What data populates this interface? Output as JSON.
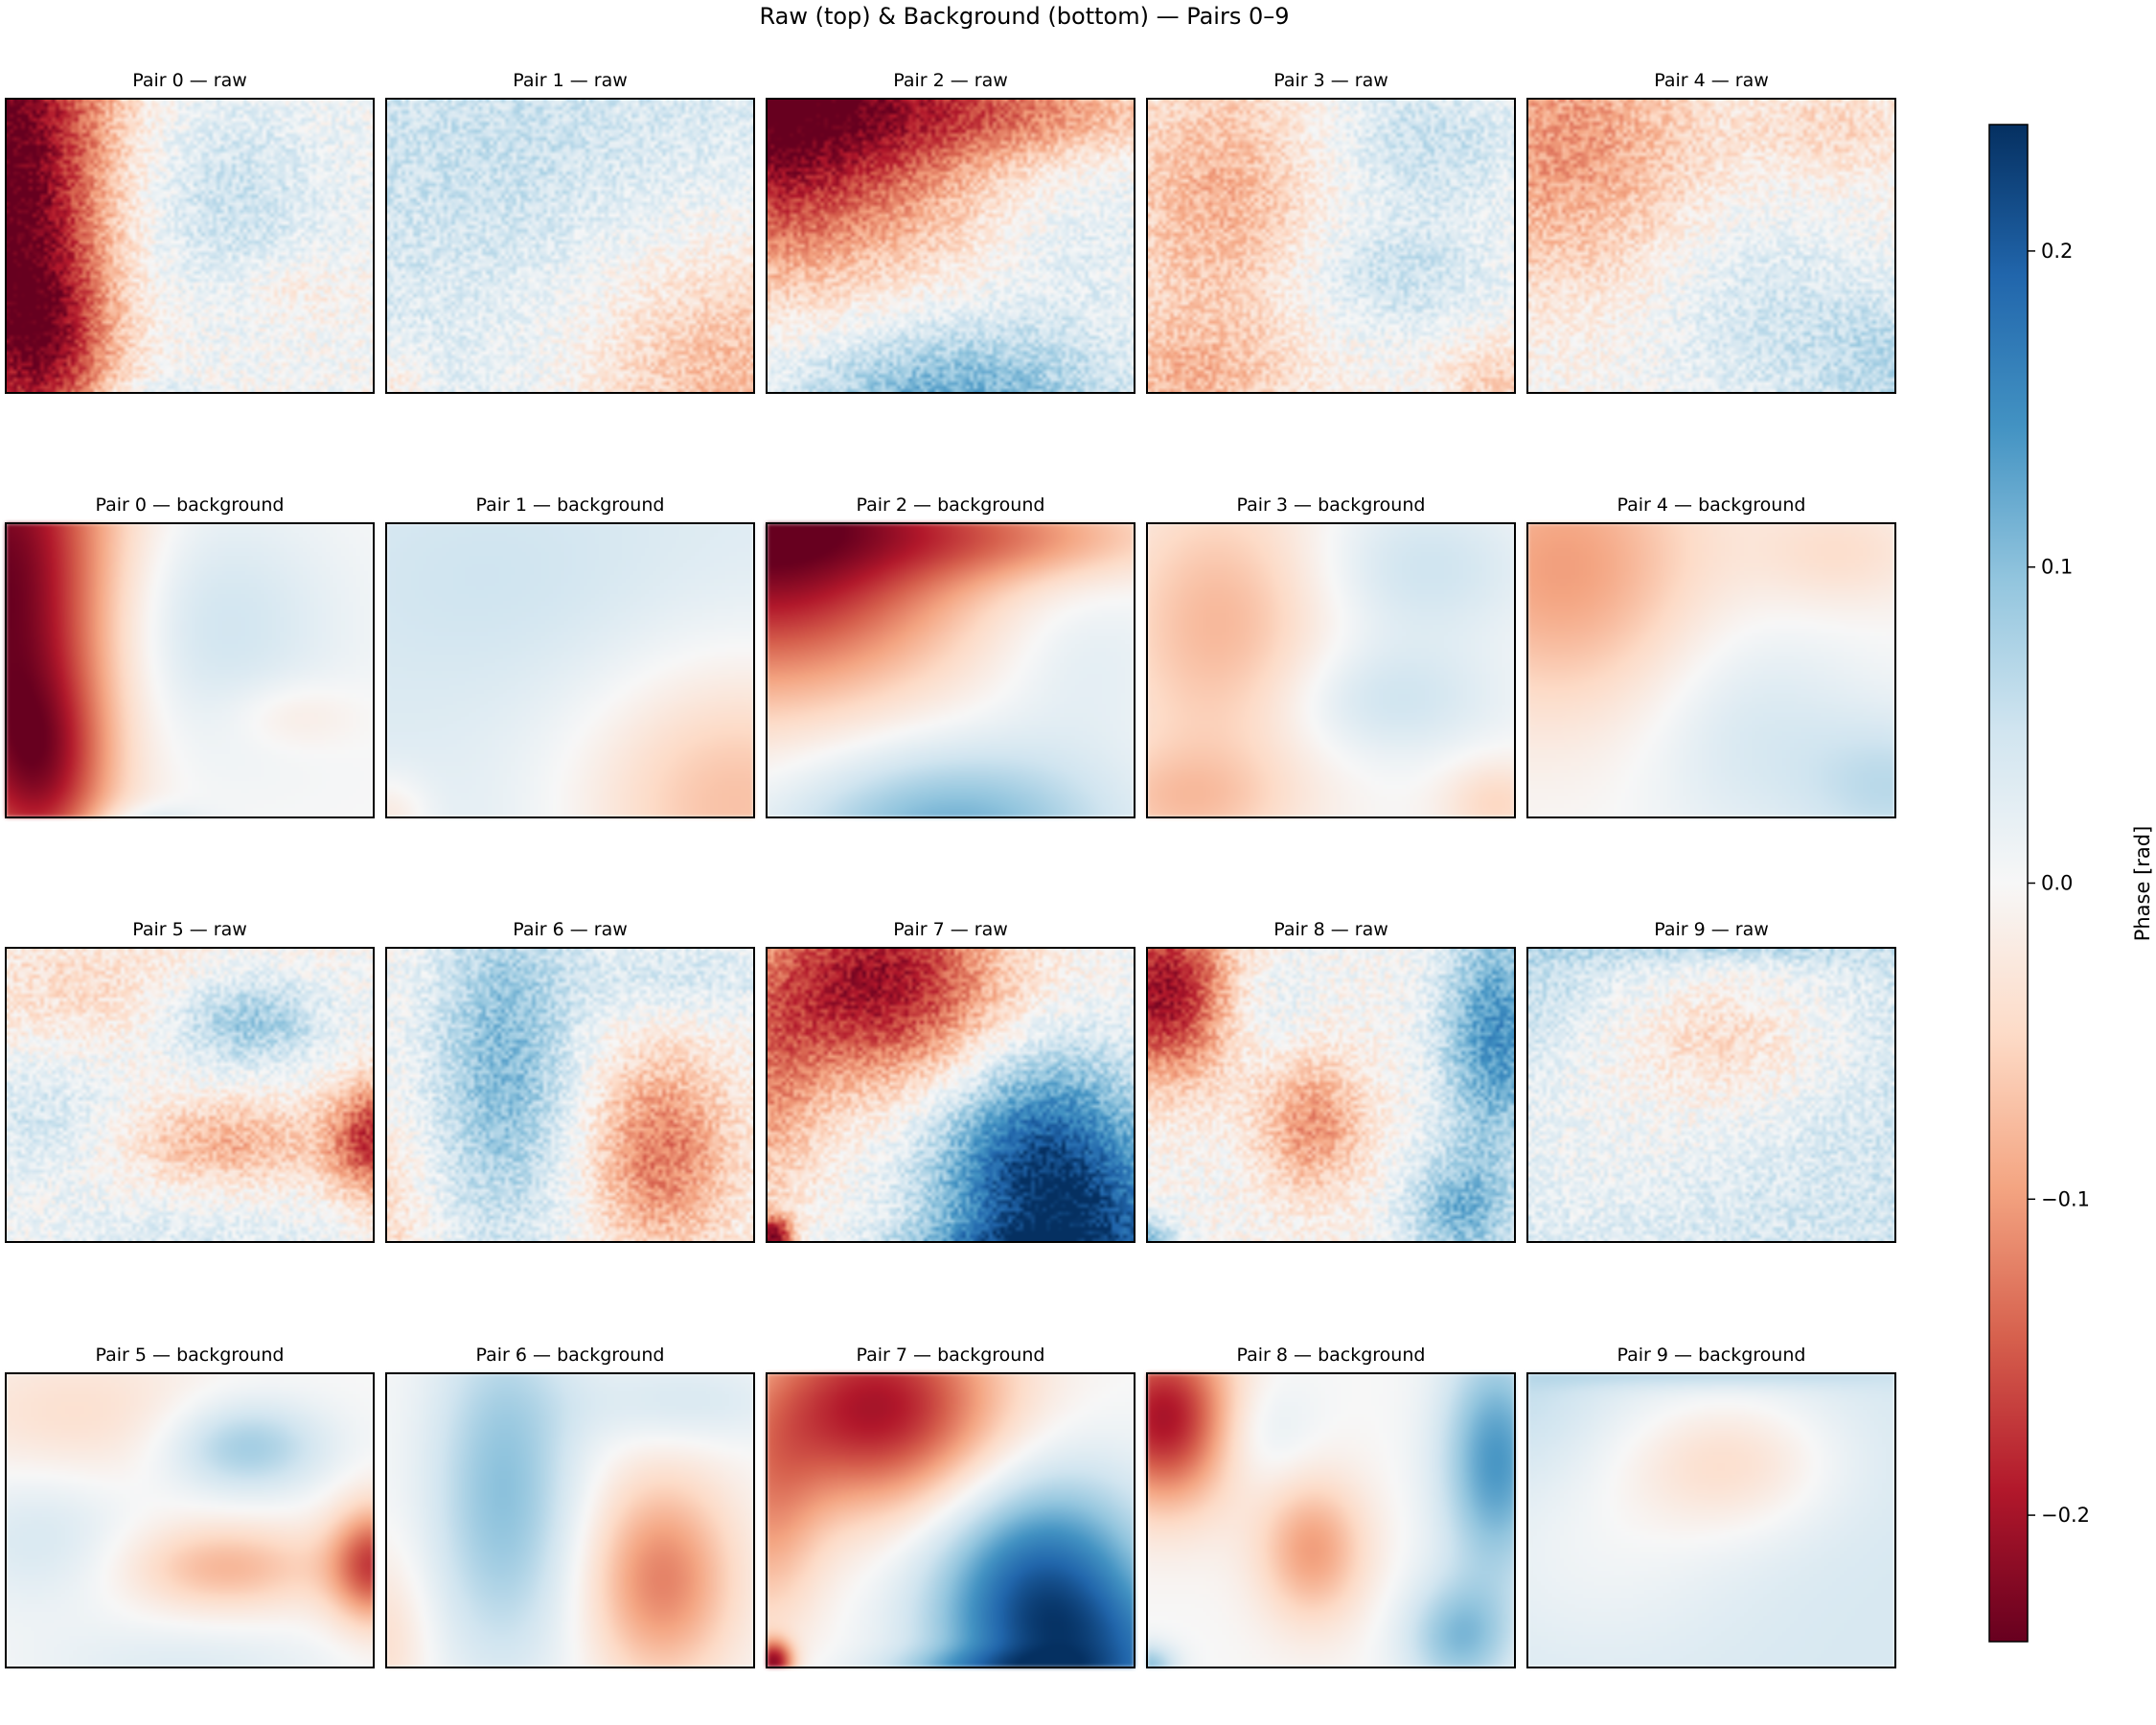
{
  "chart_data": {
    "type": "heatmap",
    "title": "Raw (top) & Background (bottom) — Pairs 0–9",
    "colormap": "RdBu",
    "colorbar": {
      "label": "Phase [rad]",
      "range": [
        -0.24,
        0.24
      ],
      "ticks": [
        0.2,
        0.1,
        0.0,
        -0.1,
        -0.2
      ],
      "tick_labels": [
        "0.2",
        "0.1",
        "0.0",
        "−0.1",
        "−0.2"
      ]
    },
    "grid_rows": 4,
    "grid_cols": 5,
    "panels": [
      {
        "title": "Pair 0 — raw",
        "pair": 0,
        "kind": "raw"
      },
      {
        "title": "Pair 1 — raw",
        "pair": 1,
        "kind": "raw"
      },
      {
        "title": "Pair 2 — raw",
        "pair": 2,
        "kind": "raw"
      },
      {
        "title": "Pair 3 — raw",
        "pair": 3,
        "kind": "raw"
      },
      {
        "title": "Pair 4 — raw",
        "pair": 4,
        "kind": "raw"
      },
      {
        "title": "Pair 0 — background",
        "pair": 0,
        "kind": "background"
      },
      {
        "title": "Pair 1 — background",
        "pair": 1,
        "kind": "background"
      },
      {
        "title": "Pair 2 — background",
        "pair": 2,
        "kind": "background"
      },
      {
        "title": "Pair 3 — background",
        "pair": 3,
        "kind": "background"
      },
      {
        "title": "Pair 4 — background",
        "pair": 4,
        "kind": "background"
      },
      {
        "title": "Pair 5 — raw",
        "pair": 5,
        "kind": "raw"
      },
      {
        "title": "Pair 6 — raw",
        "pair": 6,
        "kind": "raw"
      },
      {
        "title": "Pair 7 — raw",
        "pair": 7,
        "kind": "raw"
      },
      {
        "title": "Pair 8 — raw",
        "pair": 8,
        "kind": "raw"
      },
      {
        "title": "Pair 9 — raw",
        "pair": 9,
        "kind": "raw"
      },
      {
        "title": "Pair 5 — background",
        "pair": 5,
        "kind": "background"
      },
      {
        "title": "Pair 6 — background",
        "pair": 6,
        "kind": "background"
      },
      {
        "title": "Pair 7 — background",
        "pair": 7,
        "kind": "background"
      },
      {
        "title": "Pair 8 — background",
        "pair": 8,
        "kind": "background"
      },
      {
        "title": "Pair 9 — background",
        "pair": 9,
        "kind": "background"
      }
    ]
  }
}
